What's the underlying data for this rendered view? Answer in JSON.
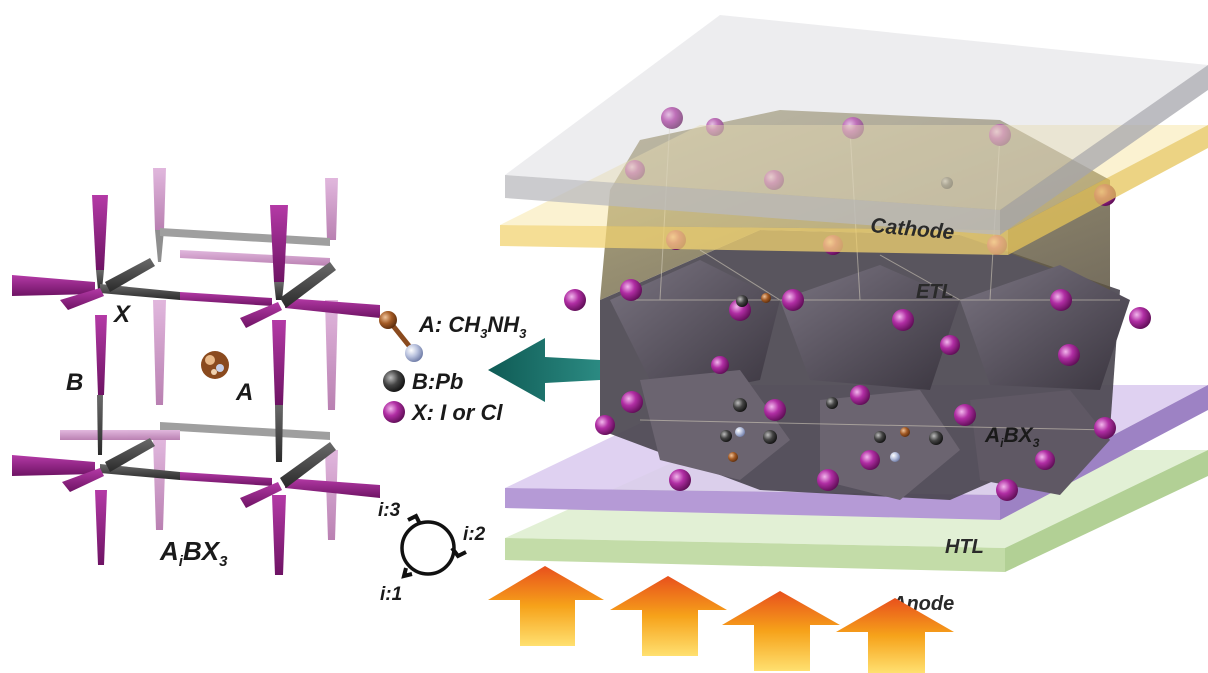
{
  "left_panel": {
    "label_x": "X",
    "label_b": "B",
    "label_a": "A",
    "formula_main": "A",
    "formula_sub_i": "i",
    "formula_bx": "BX",
    "formula_sub_3": "3"
  },
  "legend": {
    "a_label": "A: CH",
    "a_sub1": "3",
    "a_mid": "NH",
    "a_sub2": "3",
    "b_label": "B:Pb",
    "x_label": "X: I or Cl"
  },
  "cycle": {
    "i1": "i:1",
    "i2": "i:2",
    "i3": "i:3"
  },
  "device_layers": {
    "cathode": "Cathode",
    "etl": "ETL",
    "htl": "HTL",
    "anode": "Anode",
    "crystal_main": "A",
    "crystal_sub_i": "i",
    "crystal_bx": "BX",
    "crystal_sub_3": "3"
  },
  "colors": {
    "halide": "#9b1f8e",
    "halide_light": "#c98fc4",
    "lead": "#3b3b3b",
    "octahedron": "#5a5460",
    "cathode_layer": "#d6d6d8",
    "etl_layer": "#f3dc8a",
    "htl_layer": "#c9b3e3",
    "anode_layer": "#d7ebc2",
    "arrow": "#1b6f68",
    "sun_arrow": "#f0a020"
  }
}
